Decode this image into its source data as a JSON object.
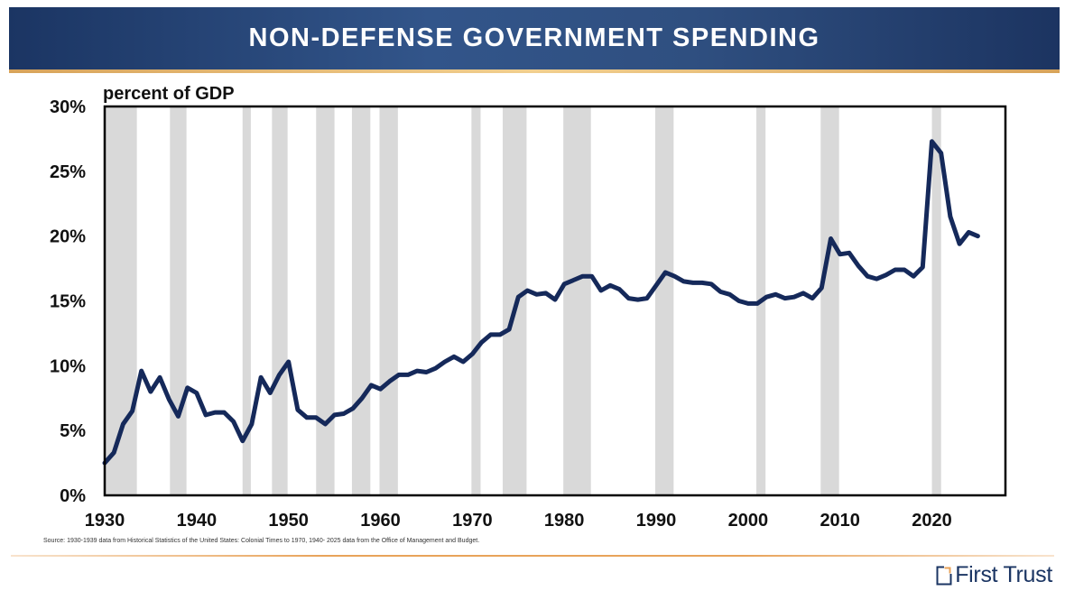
{
  "header": {
    "title": "NON-DEFENSE GOVERNMENT SPENDING"
  },
  "chart_data": {
    "type": "line",
    "title": "NON-DEFENSE GOVERNMENT SPENDING",
    "ylabel": "percent of GDP",
    "xlabel": "",
    "xlim": [
      1930,
      2028
    ],
    "ylim": [
      0,
      30
    ],
    "grid": false,
    "x_ticks": [
      1930,
      1940,
      1950,
      1960,
      1970,
      1980,
      1990,
      2000,
      2010,
      2020
    ],
    "x_tick_labels": [
      "1930",
      "1940",
      "1950",
      "1960",
      "1970",
      "1980",
      "1990",
      "2000",
      "2010",
      "2020"
    ],
    "y_ticks": [
      0,
      5,
      10,
      15,
      20,
      25,
      30
    ],
    "y_tick_labels": [
      "0%",
      "5%",
      "10%",
      "15%",
      "20%",
      "25%",
      "30%"
    ],
    "line_color": "#15295a",
    "recession_color": "#d9d9d9",
    "recessions": [
      [
        1929.6,
        1933.5
      ],
      [
        1937.1,
        1938.9
      ],
      [
        1945.0,
        1945.9
      ],
      [
        1948.2,
        1949.9
      ],
      [
        1953.0,
        1955.0
      ],
      [
        1956.9,
        1958.9
      ],
      [
        1959.9,
        1961.9
      ],
      [
        1969.9,
        1970.9
      ],
      [
        1973.3,
        1975.9
      ],
      [
        1979.9,
        1982.9
      ],
      [
        1989.9,
        1991.9
      ],
      [
        2000.9,
        2001.9
      ],
      [
        2007.9,
        2009.9
      ],
      [
        2020.0,
        2021.0
      ]
    ],
    "series": [
      {
        "name": "Non-defense government spending (% of GDP)",
        "x": [
          1930,
          1931,
          1932,
          1933,
          1934,
          1935,
          1936,
          1937,
          1938,
          1939,
          1940,
          1941,
          1942,
          1943,
          1944,
          1945,
          1946,
          1947,
          1948,
          1949,
          1950,
          1951,
          1952,
          1953,
          1954,
          1955,
          1956,
          1957,
          1958,
          1959,
          1960,
          1961,
          1962,
          1963,
          1964,
          1965,
          1966,
          1967,
          1968,
          1969,
          1970,
          1971,
          1972,
          1973,
          1974,
          1975,
          1976,
          1977,
          1978,
          1979,
          1980,
          1981,
          1982,
          1983,
          1984,
          1985,
          1986,
          1987,
          1988,
          1989,
          1990,
          1991,
          1992,
          1993,
          1994,
          1995,
          1996,
          1997,
          1998,
          1999,
          2000,
          2001,
          2002,
          2003,
          2004,
          2005,
          2006,
          2007,
          2008,
          2009,
          2010,
          2011,
          2012,
          2013,
          2014,
          2015,
          2016,
          2017,
          2018,
          2019,
          2020,
          2021,
          2022,
          2023,
          2024,
          2025
        ],
        "values": [
          2.5,
          3.3,
          5.5,
          6.5,
          9.6,
          8.0,
          9.1,
          7.4,
          6.1,
          8.3,
          7.9,
          6.2,
          6.4,
          6.4,
          5.7,
          4.2,
          5.5,
          9.1,
          7.9,
          9.3,
          10.3,
          6.6,
          6.0,
          6.0,
          5.5,
          6.2,
          6.3,
          6.7,
          7.5,
          8.5,
          8.2,
          8.8,
          9.3,
          9.3,
          9.6,
          9.5,
          9.8,
          10.3,
          10.7,
          10.3,
          10.9,
          11.8,
          12.4,
          12.4,
          12.8,
          15.3,
          15.8,
          15.5,
          15.6,
          15.1,
          16.3,
          16.6,
          16.9,
          16.9,
          15.8,
          16.2,
          15.9,
          15.2,
          15.1,
          15.2,
          16.2,
          17.2,
          16.9,
          16.5,
          16.4,
          16.4,
          16.3,
          15.7,
          15.5,
          15.0,
          14.8,
          14.8,
          15.3,
          15.5,
          15.2,
          15.3,
          15.6,
          15.2,
          16.0,
          19.8,
          18.6,
          18.7,
          17.7,
          16.9,
          16.7,
          17.0,
          17.4,
          17.4,
          16.9,
          17.6,
          27.3,
          26.4,
          21.5,
          19.4,
          20.3,
          20.0
        ]
      }
    ]
  },
  "footer": {
    "source": "Source: 1930-1939 data from Historical Statistics of the United States: Colonial Times to 1970, 1940- 2025 data from the Office of Management and Budget.",
    "logo_text": "First Trust"
  }
}
